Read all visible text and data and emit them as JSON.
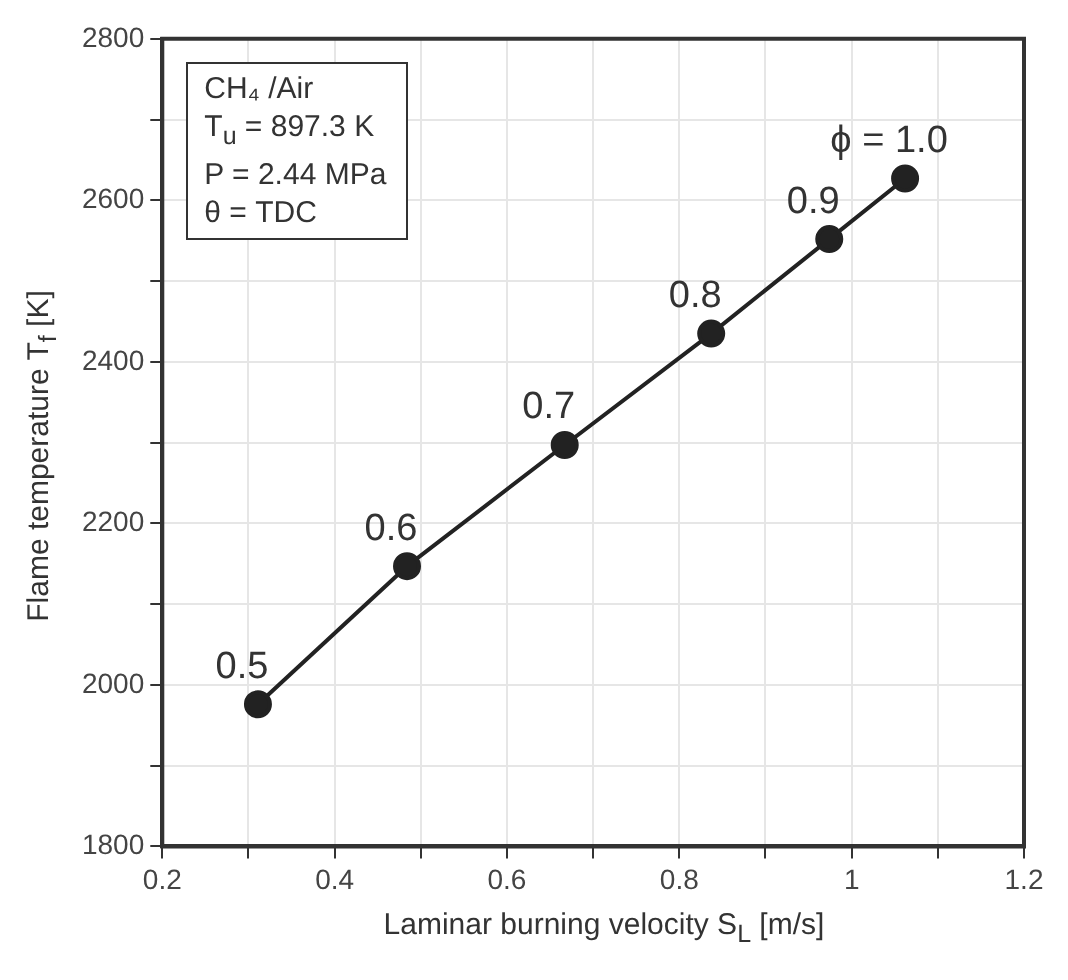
{
  "chart_data": {
    "type": "line",
    "xlabel": "Laminar burning velocity S$_{L}$ [m/s]",
    "ylabel": "Flame temperature T$_{f}$ [K]",
    "x": [
      0.311,
      0.484,
      0.667,
      0.837,
      0.974,
      1.062
    ],
    "series": [
      {
        "color": "#222222",
        "values": [
          1976,
          2147,
          2297,
          2435,
          2552,
          2627
        ]
      }
    ],
    "xlim": [
      0.2,
      1.2
    ],
    "xticks": [
      0.2,
      {
        "value": 0.3,
        "label": null
      },
      0.4,
      {
        "value": 0.5,
        "label": null
      },
      0.6,
      {
        "value": 0.7,
        "label": null
      },
      0.8,
      {
        "value": 0.9,
        "label": null
      },
      1,
      {
        "value": 1.1,
        "label": null
      },
      1.2
    ],
    "ylim": [
      1800,
      2800
    ],
    "yticks": [
      1800,
      {
        "value": 1900,
        "label": null
      },
      2000,
      {
        "value": 2100,
        "label": null
      },
      2200,
      {
        "value": 2300,
        "label": null
      },
      2400,
      {
        "value": 2500,
        "label": null
      },
      2600,
      {
        "value": 2700,
        "label": null
      },
      2800
    ],
    "grid": true,
    "legend": false,
    "marker": "circle",
    "line_style": "solid",
    "annotations": [
      "CH₄ /Air",
      "T$_{u}$ = 897.3 K",
      "P = 2.44 MPa",
      "θ  = TDC",
      {
        "text": "0.5",
        "x": 0.311,
        "y": 1976
      },
      {
        "text": "0.6",
        "x": 0.484,
        "y": 2147
      },
      {
        "text": "0.7",
        "x": 0.667,
        "y": 2297
      },
      {
        "text": "0.8",
        "x": 0.837,
        "y": 2435
      },
      {
        "text": "0.9",
        "x": 0.974,
        "y": 2552
      },
      {
        "text": "ϕ = 1.0",
        "x": 1.062,
        "y": 2627
      }
    ]
  }
}
